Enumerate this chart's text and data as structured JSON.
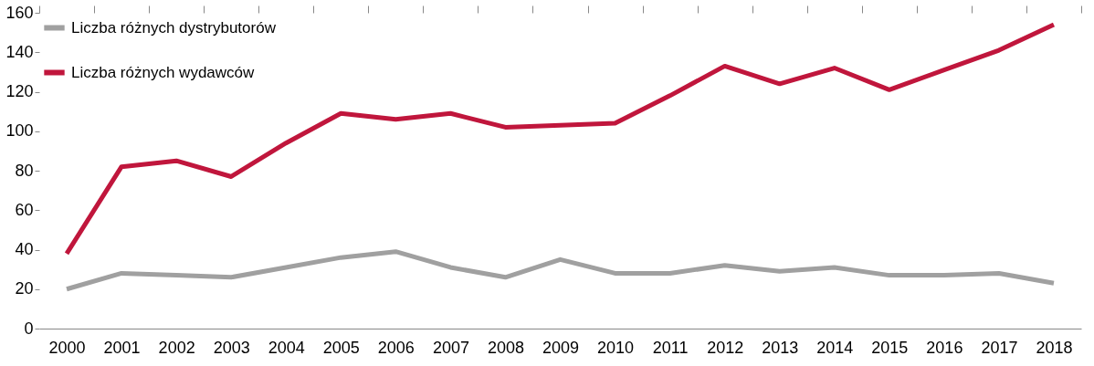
{
  "chart_data": {
    "type": "line",
    "categories": [
      "2000",
      "2001",
      "2002",
      "2003",
      "2004",
      "2005",
      "2006",
      "2007",
      "2008",
      "2009",
      "2010",
      "2011",
      "2012",
      "2013",
      "2014",
      "2015",
      "2016",
      "2017",
      "2018"
    ],
    "series": [
      {
        "name": "Liczba różnych dystrybutorów",
        "color": "#a0a0a0",
        "values": [
          20,
          28,
          27,
          26,
          31,
          36,
          39,
          31,
          26,
          35,
          28,
          28,
          32,
          29,
          31,
          27,
          27,
          28,
          23
        ]
      },
      {
        "name": "Liczba różnych wydawców",
        "color": "#c0163c",
        "values": [
          38,
          82,
          85,
          77,
          94,
          109,
          106,
          109,
          102,
          103,
          104,
          118,
          133,
          124,
          132,
          121,
          131,
          141,
          154
        ]
      }
    ],
    "ylim": [
      0,
      160
    ],
    "yticks": [
      0,
      20,
      40,
      60,
      80,
      100,
      120,
      140,
      160
    ],
    "grid": false,
    "legend": "top left",
    "marker": "none",
    "line_style": "solid"
  }
}
